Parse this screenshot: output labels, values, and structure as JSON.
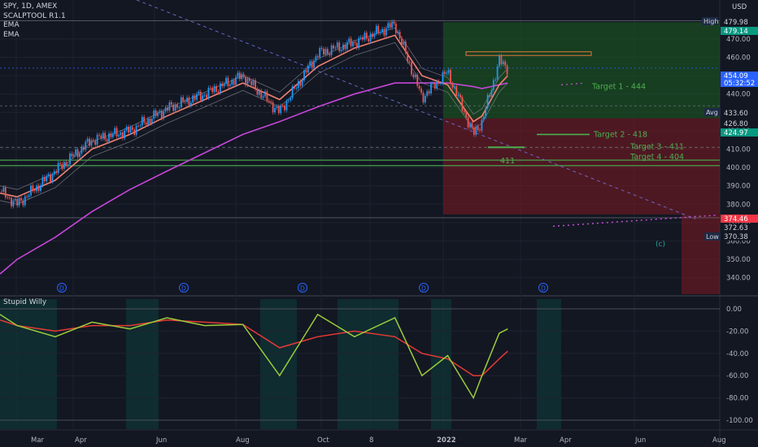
{
  "header": {
    "symbol": "SPY, 1D, AMEX",
    "indicators": [
      "SCALPTOOL R1.1",
      "EMA",
      "EMA"
    ],
    "currency": "USD"
  },
  "price_axis": {
    "ticks": [
      "470.00",
      "460.00",
      "450.00",
      "440.00",
      "430.00",
      "420.00",
      "410.00",
      "400.00",
      "390.00",
      "380.00",
      "370.00",
      "360.00",
      "350.00",
      "340.00"
    ],
    "labels": [
      {
        "text": "High",
        "kind": "tag",
        "bg": "#1e2a45",
        "fg": "#d1d4dc"
      },
      {
        "text": "479.98",
        "kind": "value",
        "bg": "#131722",
        "fg": "#d1d4dc"
      },
      {
        "text": "479.14",
        "kind": "value",
        "bg": "#089981",
        "fg": "#ffffff"
      },
      {
        "text": "454.09",
        "kind": "value",
        "bg": "#2962ff",
        "fg": "#ffffff"
      },
      {
        "text": "05:32:52",
        "kind": "value",
        "bg": "#2962ff",
        "fg": "#ffffff"
      },
      {
        "text": "Avg",
        "kind": "tag",
        "bg": "#1e2a45",
        "fg": "#d1d4dc"
      },
      {
        "text": "433.60",
        "kind": "value",
        "bg": "#131722",
        "fg": "#d1d4dc"
      },
      {
        "text": "426.80",
        "kind": "value",
        "bg": "#131722",
        "fg": "#d1d4dc"
      },
      {
        "text": "424.97",
        "kind": "value",
        "bg": "#089981",
        "fg": "#ffffff"
      },
      {
        "text": "374.46",
        "kind": "value",
        "bg": "#f23645",
        "fg": "#ffffff"
      },
      {
        "text": "372.63",
        "kind": "value",
        "bg": "#131722",
        "fg": "#d1d4dc"
      },
      {
        "text": "Low",
        "kind": "tag",
        "bg": "#1e2a45",
        "fg": "#d1d4dc"
      },
      {
        "text": "370.38",
        "kind": "value",
        "bg": "#131722",
        "fg": "#d1d4dc"
      }
    ]
  },
  "time_axis": [
    "Mar",
    "Apr",
    "Jun",
    "Aug",
    "Oct",
    "8",
    "2022",
    "Mar",
    "Apr",
    "Jun",
    "Aug"
  ],
  "annotations": {
    "targets": [
      {
        "text": "Target 1 - 444",
        "price": 444
      },
      {
        "text": "Target 2 - 418",
        "price": 418
      },
      {
        "text": "Target 3 - 411",
        "price": 411
      },
      {
        "text": "Target 4 - 404",
        "price": 404
      }
    ],
    "low_label": "411",
    "wave_label": "(c)",
    "dividend_markers": [
      "D",
      "D",
      "D",
      "D",
      "D"
    ]
  },
  "indicator": {
    "title": "Stupid Willy",
    "ticks": [
      "0.00",
      "-20.00",
      "-40.00",
      "-60.00",
      "-80.00",
      "-100.00"
    ]
  },
  "chart_data": {
    "type": "candlestick",
    "symbol": "SPY",
    "interval": "1D",
    "ylim": [
      331,
      485
    ],
    "dates": [
      "2021-02-15",
      "2021-03-01",
      "2021-04-01",
      "2021-05-01",
      "2021-06-01",
      "2021-07-01",
      "2021-08-01",
      "2021-09-01",
      "2021-10-01",
      "2021-11-01",
      "2021-12-01",
      "2022-01-03",
      "2022-01-25",
      "2022-02-15",
      "2022-03-08",
      "2022-03-15",
      "2022-03-29",
      "2022-04-05"
    ],
    "close": [
      387,
      380,
      398,
      415,
      420,
      432,
      440,
      450,
      430,
      462,
      468,
      478,
      438,
      452,
      418,
      425,
      458,
      454
    ],
    "ema_fast": [
      386,
      384,
      393,
      410,
      418,
      428,
      437,
      446,
      437,
      455,
      465,
      472,
      450,
      445,
      425,
      428,
      445,
      450
    ],
    "ema_slow": [
      342,
      350,
      362,
      376,
      388,
      398,
      408,
      418,
      425,
      433,
      440,
      446,
      446,
      446,
      444,
      443,
      445,
      446
    ],
    "levels": {
      "high": 479.98,
      "avg": 433.6,
      "low": 370.38,
      "current": 454.09,
      "entry": 426.8
    },
    "indicator_series": {
      "name": "Stupid Willy",
      "ylim": [
        -105,
        0
      ],
      "fast": [
        -5,
        -15,
        -25,
        -12,
        -18,
        -8,
        -15,
        -14,
        -60,
        -5,
        -25,
        -8,
        -60,
        -42,
        -80,
        -60,
        -22,
        -18
      ],
      "slow": [
        -10,
        -15,
        -20,
        -15,
        -15,
        -10,
        -12,
        -14,
        -35,
        -25,
        -20,
        -25,
        -40,
        -45,
        -60,
        -60,
        -45,
        -38
      ]
    }
  }
}
